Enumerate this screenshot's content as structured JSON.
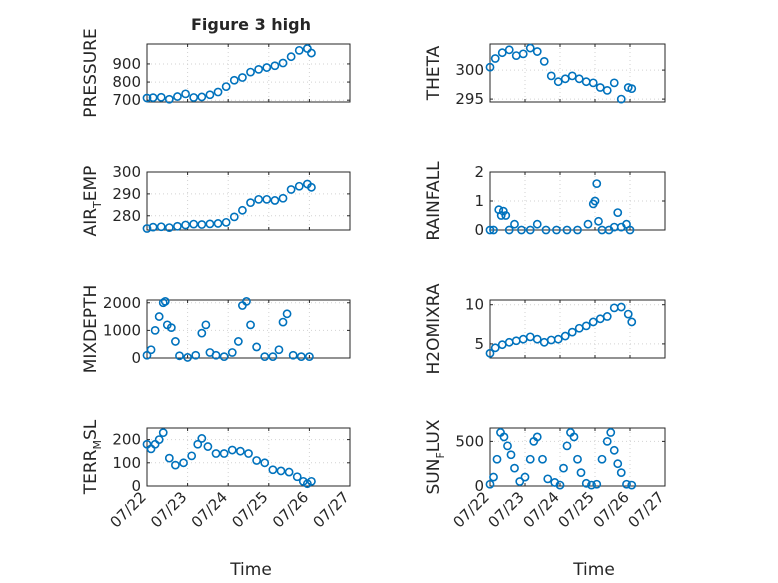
{
  "figure": {
    "title": "Figure 3 high"
  },
  "marker_color": "#0072BD",
  "x_axis": {
    "label": "Time",
    "ticks": [
      "07/22",
      "07/23",
      "07/24",
      "07/25",
      "07/26",
      "07/27"
    ],
    "range_days": [
      22,
      27
    ]
  },
  "chart_data": [
    {
      "type": "scatter",
      "ylabel": "PRESSURE",
      "ylim": [
        690,
        1010
      ],
      "yticks": [
        700,
        800,
        900
      ],
      "grid": true,
      "x": [
        22.0,
        22.15,
        22.35,
        22.55,
        22.75,
        22.95,
        23.15,
        23.35,
        23.55,
        23.75,
        23.95,
        24.15,
        24.35,
        24.55,
        24.75,
        24.95,
        25.15,
        25.35,
        25.55,
        25.75,
        25.95,
        26.05
      ],
      "y": [
        712,
        714,
        716,
        705,
        720,
        735,
        715,
        718,
        730,
        745,
        775,
        810,
        825,
        855,
        870,
        880,
        890,
        905,
        940,
        975,
        985,
        960
      ]
    },
    {
      "type": "scatter",
      "ylabel": "THETA",
      "ylim": [
        294.5,
        304.5
      ],
      "yticks": [
        295,
        300
      ],
      "grid": true,
      "x": [
        22.0,
        22.15,
        22.35,
        22.55,
        22.75,
        22.95,
        23.15,
        23.35,
        23.55,
        23.75,
        23.95,
        24.15,
        24.35,
        24.55,
        24.75,
        24.95,
        25.15,
        25.35,
        25.55,
        25.75,
        25.95,
        26.05
      ],
      "y": [
        300.5,
        302.0,
        303.0,
        303.5,
        302.5,
        302.8,
        303.8,
        303.2,
        301.5,
        299.0,
        298.0,
        298.5,
        299.0,
        298.5,
        298.0,
        297.8,
        297.0,
        296.5,
        297.8,
        295.0,
        297.0,
        296.8
      ]
    },
    {
      "type": "scatter",
      "ylabel": "AIR_TEMP",
      "ylim": [
        273.5,
        300
      ],
      "yticks": [
        280,
        290,
        300
      ],
      "grid": true,
      "x": [
        22.0,
        22.15,
        22.35,
        22.55,
        22.75,
        22.95,
        23.15,
        23.35,
        23.55,
        23.75,
        23.95,
        24.15,
        24.35,
        24.55,
        24.75,
        24.95,
        25.15,
        25.35,
        25.55,
        25.75,
        25.95,
        26.05
      ],
      "y": [
        274.2,
        274.8,
        275.0,
        274.6,
        275.2,
        275.8,
        276.2,
        276.0,
        276.3,
        276.5,
        277.0,
        279.5,
        282.5,
        286.0,
        287.5,
        287.5,
        287.0,
        288.0,
        292.0,
        293.5,
        294.5,
        293.0
      ]
    },
    {
      "type": "scatter",
      "ylabel": "RAINFALL",
      "ylim": [
        0,
        2
      ],
      "yticks": [
        0,
        1,
        2
      ],
      "grid": true,
      "x": [
        22.0,
        22.1,
        22.25,
        22.32,
        22.38,
        22.45,
        22.55,
        22.7,
        22.9,
        23.15,
        23.35,
        23.6,
        23.9,
        24.2,
        24.5,
        24.8,
        24.95,
        25.0,
        25.05,
        25.1,
        25.2,
        25.4,
        25.55,
        25.65,
        25.75,
        25.9,
        26.0
      ],
      "y": [
        0,
        0,
        0.7,
        0.5,
        0.65,
        0.5,
        0,
        0.2,
        0,
        0,
        0.2,
        0,
        0,
        0,
        0,
        0.2,
        0.9,
        1.0,
        1.6,
        0.3,
        0,
        0,
        0.1,
        0.6,
        0.1,
        0.2,
        0
      ]
    },
    {
      "type": "scatter",
      "ylabel": "MIXDEPTH",
      "ylim": [
        0,
        2100
      ],
      "yticks": [
        0,
        1000,
        2000
      ],
      "grid": true,
      "x": [
        22.0,
        22.1,
        22.2,
        22.3,
        22.4,
        22.45,
        22.5,
        22.6,
        22.7,
        22.8,
        23.0,
        23.2,
        23.35,
        23.45,
        23.55,
        23.7,
        23.9,
        24.1,
        24.25,
        24.35,
        24.45,
        24.55,
        24.7,
        24.9,
        25.1,
        25.25,
        25.35,
        25.45,
        25.6,
        25.8,
        26.0
      ],
      "y": [
        100,
        300,
        1000,
        1500,
        2000,
        2050,
        1200,
        1100,
        600,
        80,
        20,
        100,
        900,
        1200,
        200,
        100,
        50,
        200,
        600,
        1900,
        2050,
        1200,
        400,
        50,
        50,
        300,
        1300,
        1600,
        100,
        50,
        50
      ]
    },
    {
      "type": "scatter",
      "ylabel": "H2OMIXRA",
      "ylim": [
        3.2,
        10.6
      ],
      "yticks": [
        5,
        10
      ],
      "grid": true,
      "x": [
        22.0,
        22.15,
        22.35,
        22.55,
        22.75,
        22.95,
        23.15,
        23.35,
        23.55,
        23.75,
        23.95,
        24.15,
        24.35,
        24.55,
        24.75,
        24.95,
        25.15,
        25.35,
        25.55,
        25.75,
        25.95,
        26.05
      ],
      "y": [
        3.8,
        4.5,
        4.9,
        5.2,
        5.4,
        5.6,
        5.9,
        5.6,
        5.2,
        5.5,
        5.6,
        6.0,
        6.5,
        7.0,
        7.3,
        7.8,
        8.2,
        8.5,
        9.6,
        9.7,
        8.8,
        7.8
      ]
    },
    {
      "type": "scatter",
      "ylabel": "TERR_MSL",
      "ylim": [
        0,
        250
      ],
      "yticks": [
        0,
        100,
        200
      ],
      "grid": true,
      "x": [
        22.0,
        22.1,
        22.2,
        22.3,
        22.4,
        22.55,
        22.7,
        22.9,
        23.1,
        23.25,
        23.35,
        23.5,
        23.7,
        23.9,
        24.1,
        24.3,
        24.5,
        24.7,
        24.9,
        25.1,
        25.3,
        25.5,
        25.7,
        25.85,
        25.95,
        26.05
      ],
      "y": [
        180,
        160,
        180,
        200,
        230,
        120,
        90,
        100,
        130,
        180,
        205,
        170,
        140,
        140,
        155,
        150,
        140,
        110,
        100,
        70,
        65,
        60,
        40,
        20,
        10,
        20
      ]
    },
    {
      "type": "scatter",
      "ylabel": "SUN_FLUX",
      "ylim": [
        0,
        650
      ],
      "yticks": [
        0,
        500
      ],
      "grid": true,
      "x": [
        22.0,
        22.1,
        22.2,
        22.3,
        22.4,
        22.5,
        22.6,
        22.7,
        22.85,
        23.0,
        23.15,
        23.25,
        23.35,
        23.5,
        23.65,
        23.85,
        24.0,
        24.1,
        24.2,
        24.3,
        24.4,
        24.5,
        24.6,
        24.75,
        24.9,
        25.05,
        25.2,
        25.35,
        25.45,
        25.55,
        25.65,
        25.75,
        25.9,
        26.05
      ],
      "y": [
        20,
        100,
        300,
        600,
        550,
        450,
        350,
        200,
        50,
        100,
        300,
        500,
        550,
        300,
        80,
        40,
        10,
        200,
        450,
        600,
        550,
        300,
        150,
        30,
        10,
        20,
        300,
        500,
        600,
        400,
        250,
        150,
        20,
        10
      ]
    }
  ]
}
